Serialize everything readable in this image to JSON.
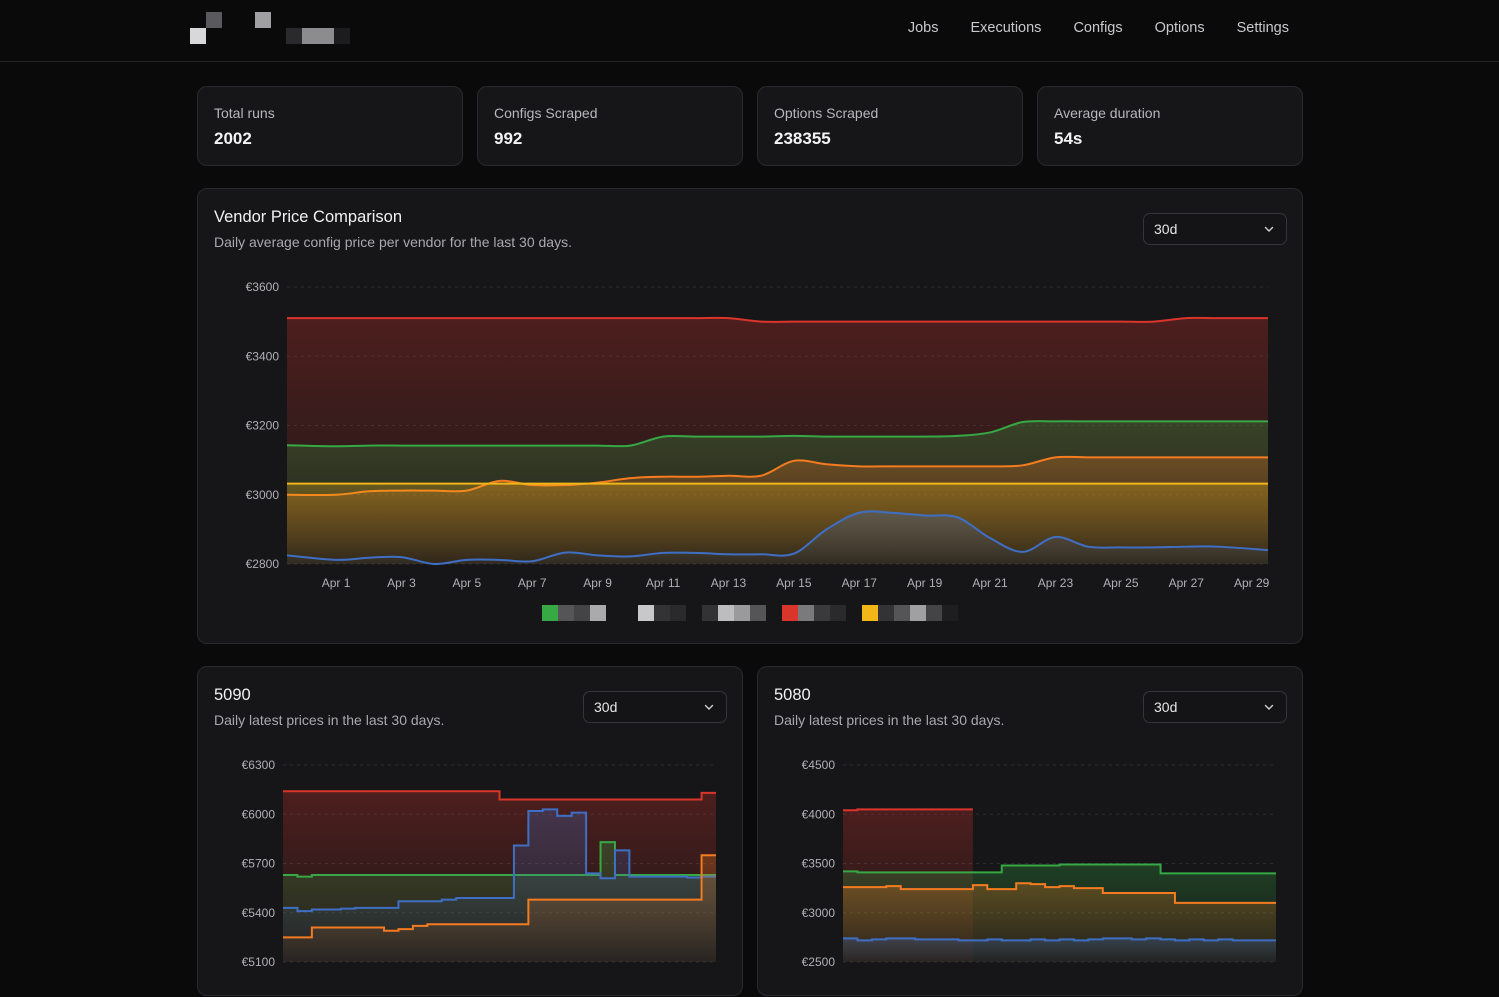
{
  "nav": [
    "Jobs",
    "Executions",
    "Configs",
    "Options",
    "Settings"
  ],
  "stats": [
    {
      "label": "Total runs",
      "value": "2002"
    },
    {
      "label": "Configs Scraped",
      "value": "992"
    },
    {
      "label": "Options Scraped",
      "value": "238355"
    },
    {
      "label": "Average duration",
      "value": "54s"
    }
  ],
  "main_chart": {
    "title": "Vendor Price Comparison",
    "subtitle": "Daily average config price per vendor for the last 30 days.",
    "range": "30d"
  },
  "card_5090": {
    "title": "5090",
    "subtitle": "Daily latest prices in the last 30 days.",
    "range": "30d"
  },
  "card_5080": {
    "title": "5080",
    "subtitle": "Daily latest prices in the last 30 days.",
    "range": "30d"
  },
  "colors": {
    "red": "#d9352b",
    "green": "#36a844",
    "orange": "#f47b20",
    "yellow": "#f2b619",
    "blue": "#3e6fc4"
  },
  "chart_data": [
    {
      "type": "area",
      "y_ticks": [
        "€3600",
        "€3400",
        "€3200",
        "€3000",
        "€2800"
      ],
      "x_ticks": [
        "Apr 1",
        "Apr 3",
        "Apr 5",
        "Apr 7",
        "Apr 9",
        "Apr 11",
        "Apr 13",
        "Apr 15",
        "Apr 17",
        "Apr 19",
        "Apr 21",
        "Apr 23",
        "Apr 25",
        "Apr 27",
        "Apr 29"
      ],
      "ylim": [
        2800,
        3600
      ],
      "x": [
        "Mar 31",
        "Apr 1",
        "Apr 2",
        "Apr 3",
        "Apr 4",
        "Apr 5",
        "Apr 6",
        "Apr 7",
        "Apr 8",
        "Apr 9",
        "Apr 10",
        "Apr 11",
        "Apr 12",
        "Apr 13",
        "Apr 14",
        "Apr 15",
        "Apr 16",
        "Apr 17",
        "Apr 18",
        "Apr 19",
        "Apr 20",
        "Apr 21",
        "Apr 22",
        "Apr 23",
        "Apr 24",
        "Apr 25",
        "Apr 26",
        "Apr 27",
        "Apr 28",
        "Apr 29"
      ],
      "series": [
        {
          "color": "red",
          "values": [
            3510,
            3510,
            3510,
            3510,
            3510,
            3510,
            3510,
            3510,
            3510,
            3510,
            3510,
            3510,
            3510,
            3510,
            3500,
            3500,
            3500,
            3500,
            3500,
            3500,
            3500,
            3500,
            3500,
            3500,
            3500,
            3500,
            3500,
            3510,
            3510,
            3510
          ]
        },
        {
          "color": "green",
          "values": [
            3143,
            3140,
            3142,
            3142,
            3142,
            3142,
            3142,
            3142,
            3142,
            3142,
            3142,
            3168,
            3168,
            3168,
            3168,
            3170,
            3168,
            3168,
            3168,
            3168,
            3170,
            3180,
            3210,
            3212,
            3212,
            3212,
            3212,
            3212,
            3212,
            3212
          ]
        },
        {
          "color": "orange",
          "values": [
            3000,
            3000,
            3010,
            3012,
            3012,
            3012,
            3040,
            3028,
            3028,
            3035,
            3048,
            3052,
            3052,
            3055,
            3055,
            3098,
            3088,
            3082,
            3082,
            3082,
            3082,
            3082,
            3085,
            3108,
            3108,
            3108,
            3108,
            3108,
            3108,
            3108
          ]
        },
        {
          "color": "yellow",
          "values": [
            3032,
            3032,
            3032,
            3032,
            3032,
            3032,
            3032,
            3032,
            3032,
            3032,
            3032,
            3032,
            3032,
            3032,
            3032,
            3032,
            3032,
            3032,
            3032,
            3032,
            3032,
            3032,
            3032,
            3032,
            3032,
            3032,
            3032,
            3032,
            3032,
            3032
          ]
        },
        {
          "color": "blue",
          "values": [
            2825,
            2812,
            2818,
            2820,
            2800,
            2812,
            2812,
            2808,
            2833,
            2825,
            2822,
            2832,
            2832,
            2828,
            2828,
            2830,
            2900,
            2948,
            2948,
            2940,
            2935,
            2875,
            2835,
            2878,
            2850,
            2848,
            2848,
            2850,
            2850,
            2840
          ]
        }
      ]
    },
    {
      "type": "area",
      "y_ticks": [
        "€6300",
        "€6000",
        "€5700",
        "€5400",
        "€5100"
      ],
      "ylim": [
        5100,
        6300
      ],
      "series": [
        {
          "color": "red",
          "step": true,
          "values": [
            6140,
            6140,
            6140,
            6140,
            6140,
            6140,
            6140,
            6140,
            6140,
            6140,
            6140,
            6140,
            6140,
            6140,
            6140,
            6090,
            6090,
            6090,
            6090,
            6090,
            6090,
            6090,
            6090,
            6090,
            6090,
            6090,
            6090,
            6090,
            6090,
            6130
          ]
        },
        {
          "color": "green",
          "step": true,
          "values": [
            5630,
            5620,
            5630,
            5630,
            5630,
            5630,
            5630,
            5630,
            5630,
            5630,
            5630,
            5630,
            5630,
            5630,
            5630,
            5630,
            5630,
            5630,
            5630,
            5630,
            5630,
            5630,
            5830,
            5630,
            5630,
            5630,
            5630,
            5630,
            5630,
            5630
          ]
        },
        {
          "color": "blue",
          "step": true,
          "values": [
            5430,
            5410,
            5420,
            5420,
            5425,
            5430,
            5430,
            5430,
            5470,
            5470,
            5470,
            5480,
            5490,
            5490,
            5490,
            5490,
            5810,
            6020,
            6030,
            5990,
            6010,
            5640,
            5610,
            5780,
            5620,
            5620,
            5620,
            5620,
            5615,
            5620
          ]
        },
        {
          "color": "orange",
          "step": true,
          "values": [
            5250,
            5250,
            5310,
            5310,
            5310,
            5310,
            5310,
            5290,
            5300,
            5320,
            5330,
            5330,
            5330,
            5330,
            5330,
            5330,
            5330,
            5480,
            5480,
            5480,
            5480,
            5480,
            5480,
            5480,
            5480,
            5480,
            5480,
            5480,
            5480,
            5750
          ]
        }
      ]
    },
    {
      "type": "area",
      "y_ticks": [
        "€4500",
        "€4000",
        "€3500",
        "€3000",
        "€2500"
      ],
      "ylim": [
        2500,
        4500
      ],
      "series": [
        {
          "color": "red",
          "step": true,
          "values": [
            4040,
            4050,
            4050,
            4050,
            4050,
            4050,
            4050,
            4050,
            4050
          ]
        },
        {
          "color": "green",
          "step": true,
          "values": [
            3420,
            3410,
            3410,
            3410,
            3410,
            3410,
            3410,
            3410,
            3410,
            3410,
            3410,
            3480,
            3480,
            3480,
            3480,
            3490,
            3490,
            3490,
            3490,
            3490,
            3490,
            3490,
            3400,
            3400,
            3400,
            3400,
            3400,
            3400,
            3400,
            3400
          ]
        },
        {
          "color": "orange",
          "step": true,
          "values": [
            3260,
            3260,
            3260,
            3270,
            3240,
            3240,
            3240,
            3240,
            3240,
            3280,
            3240,
            3240,
            3300,
            3290,
            3260,
            3270,
            3250,
            3250,
            3200,
            3200,
            3200,
            3200,
            3200,
            3100,
            3100,
            3100,
            3100,
            3100,
            3100,
            3100
          ]
        },
        {
          "color": "blue",
          "step": true,
          "values": [
            2740,
            2720,
            2730,
            2740,
            2740,
            2730,
            2730,
            2730,
            2720,
            2720,
            2730,
            2720,
            2720,
            2730,
            2720,
            2730,
            2720,
            2730,
            2740,
            2740,
            2730,
            2740,
            2730,
            2720,
            2730,
            2720,
            2730,
            2720,
            2720,
            2720
          ]
        }
      ]
    }
  ]
}
